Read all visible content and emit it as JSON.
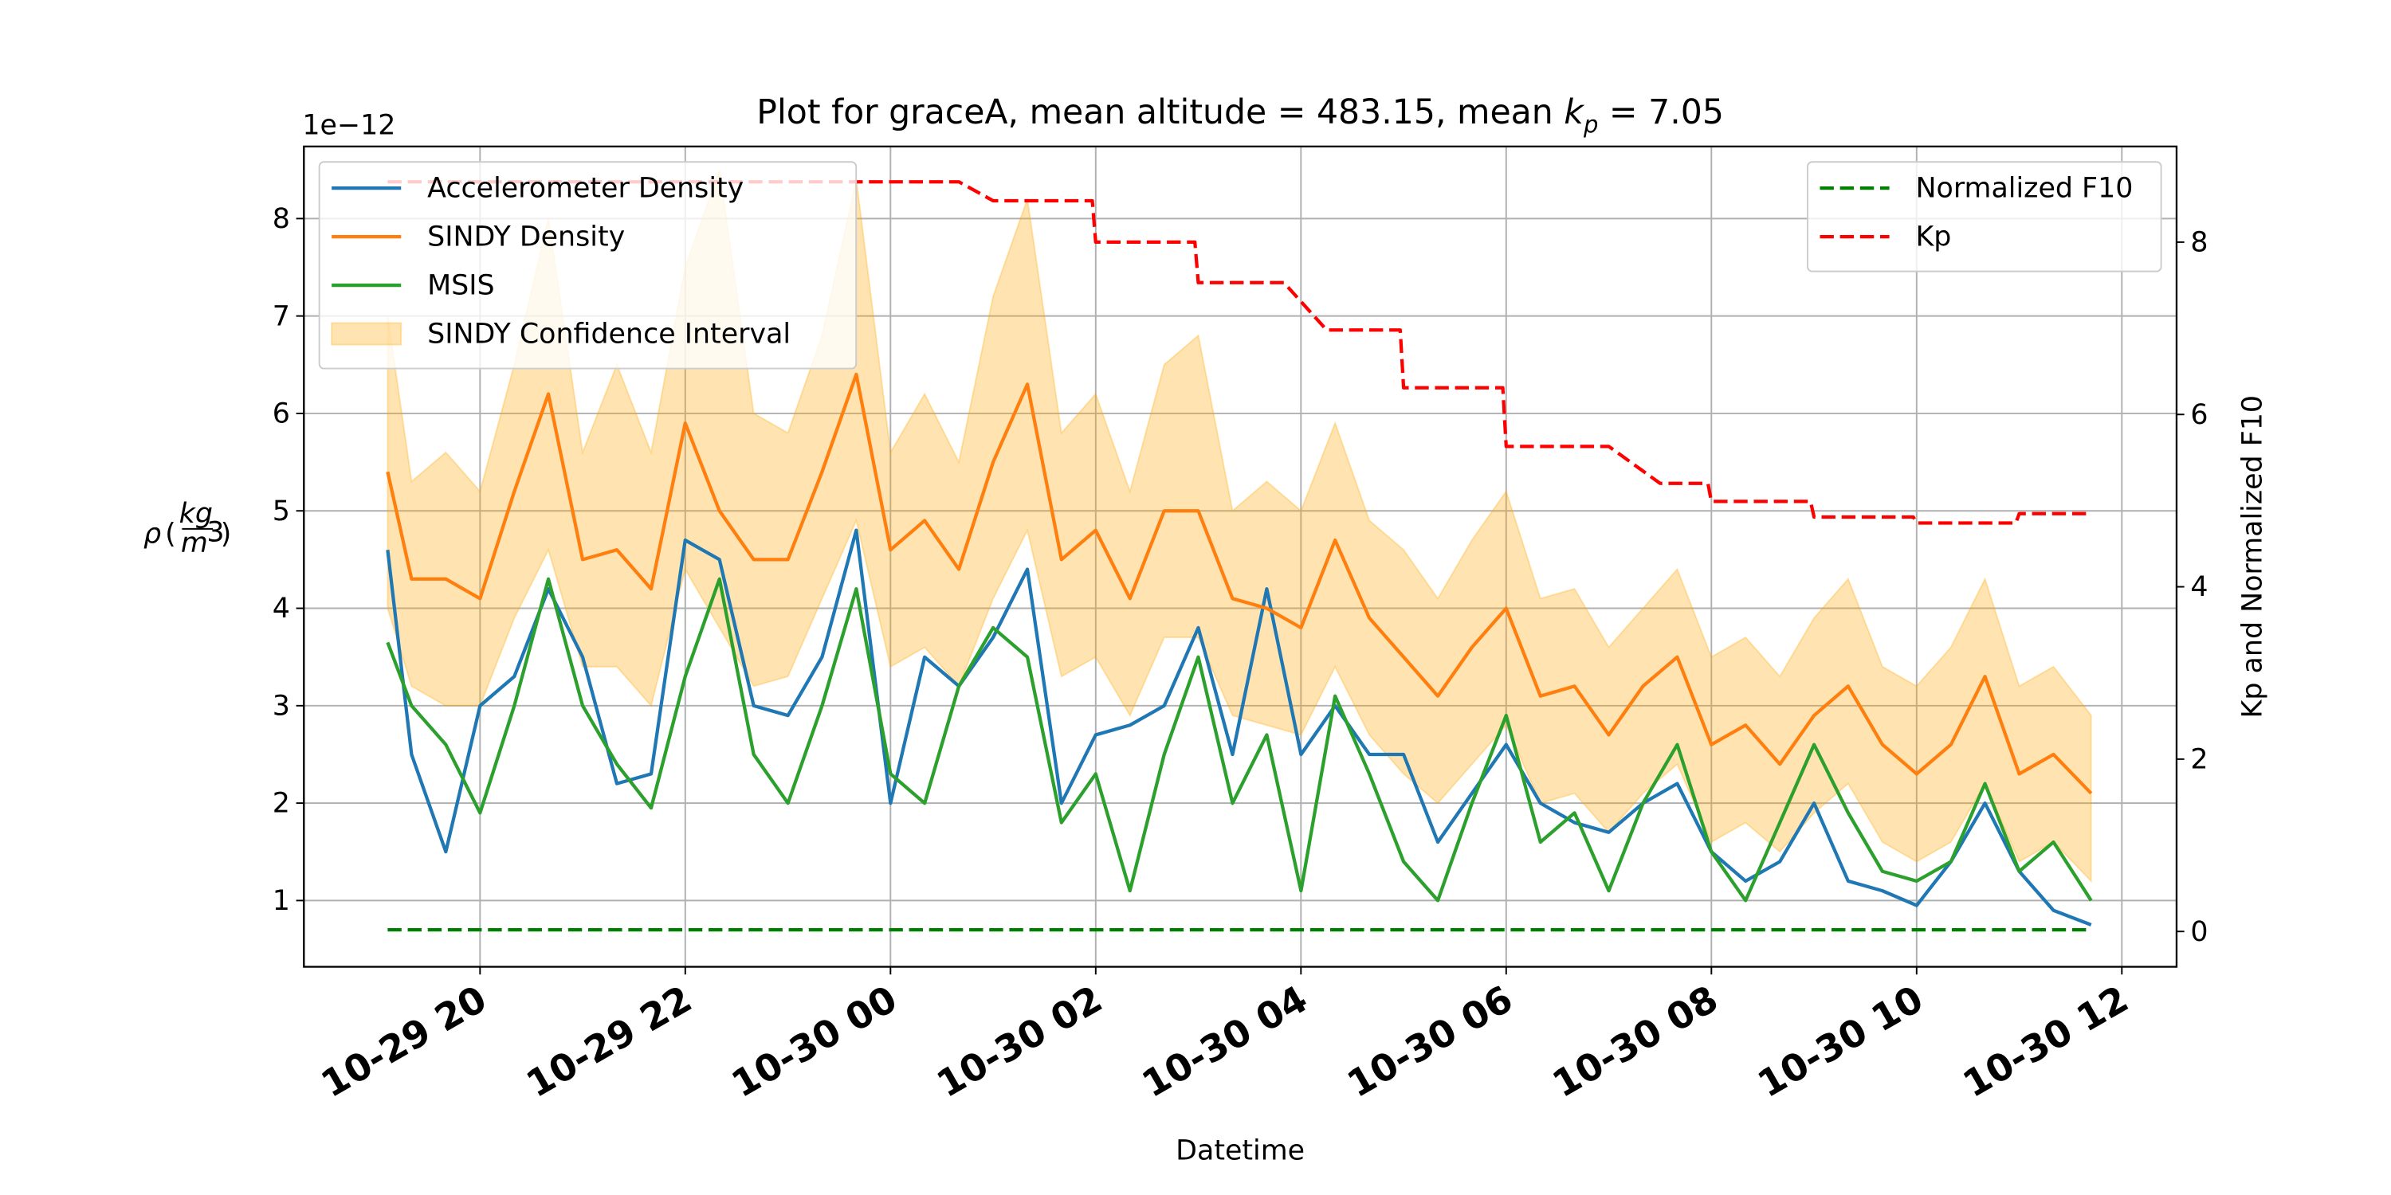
{
  "chart_data": {
    "type": "line",
    "title": [
      "Plot for graceA, mean altitude = 483.15, mean ",
      "k",
      "p",
      " = 7.05"
    ],
    "x_label": "Datetime",
    "y_label": [
      "ρ",
      "kg",
      "m",
      "3"
    ],
    "y_offset_label": "1e−12",
    "y2_label": "Kp and Normalized F10",
    "grid": true,
    "legend": "upper left",
    "legend2": "upper right",
    "x": [
      "10-29 19:06",
      "10-29 19:20",
      "10-29 19:40",
      "10-29 20:00",
      "10-29 20:20",
      "10-29 20:40",
      "10-29 21:00",
      "10-29 21:20",
      "10-29 21:40",
      "10-29 22:00",
      "10-29 22:20",
      "10-29 22:40",
      "10-29 23:00",
      "10-29 23:20",
      "10-29 23:40",
      "10-30 00:00",
      "10-30 00:20",
      "10-30 00:40",
      "10-30 01:00",
      "10-30 01:20",
      "10-30 01:40",
      "10-30 02:00",
      "10-30 02:20",
      "10-30 02:40",
      "10-30 03:00",
      "10-30 03:20",
      "10-30 03:40",
      "10-30 04:00",
      "10-30 04:20",
      "10-30 04:40",
      "10-30 05:00",
      "10-30 05:20",
      "10-30 05:40",
      "10-30 06:00",
      "10-30 06:20",
      "10-30 06:40",
      "10-30 07:00",
      "10-30 07:20",
      "10-30 07:40",
      "10-30 08:00",
      "10-30 08:20",
      "10-30 08:40",
      "10-30 09:00",
      "10-30 09:20",
      "10-30 09:40",
      "10-30 10:00",
      "10-30 10:20",
      "10-30 10:40",
      "10-30 11:00",
      "10-30 11:20",
      "10-30 11:42"
    ],
    "xlim": [
      "10-29 18:17",
      "10-30 12:32"
    ],
    "xticks": [
      {
        "value": "10-29 20:00",
        "label": "10-29 20"
      },
      {
        "value": "10-29 22:00",
        "label": "10-29 22"
      },
      {
        "value": "10-30 00:00",
        "label": "10-30 00"
      },
      {
        "value": "10-30 02:00",
        "label": "10-30 02"
      },
      {
        "value": "10-30 04:00",
        "label": "10-30 04"
      },
      {
        "value": "10-30 06:00",
        "label": "10-30 06"
      },
      {
        "value": "10-30 08:00",
        "label": "10-30 08"
      },
      {
        "value": "10-30 10:00",
        "label": "10-30 10"
      },
      {
        "value": "10-30 12:00",
        "label": "10-30 12"
      }
    ],
    "ylim": [
      0.32,
      8.74
    ],
    "yticks": [
      1,
      2,
      3,
      4,
      5,
      6,
      7,
      8
    ],
    "y2lim": [
      -0.41,
      9.11
    ],
    "y2ticks": [
      0,
      2,
      4,
      6,
      8
    ],
    "series": [
      {
        "name": "Accelerometer Density",
        "color": "#1f77b4",
        "values": [
          4.6,
          2.5,
          1.5,
          3.0,
          3.3,
          4.2,
          3.5,
          2.2,
          2.3,
          4.7,
          4.5,
          3.0,
          2.9,
          3.5,
          4.8,
          2.0,
          3.5,
          3.2,
          3.7,
          4.4,
          2.0,
          2.7,
          2.8,
          3.0,
          3.8,
          2.5,
          4.2,
          2.5,
          3.0,
          2.5,
          2.5,
          1.6,
          2.1,
          2.6,
          2.0,
          1.8,
          1.7,
          2.0,
          2.2,
          1.5,
          1.2,
          1.4,
          2.0,
          1.2,
          1.1,
          0.95,
          1.4,
          2.0,
          1.3,
          0.9,
          0.75
        ]
      },
      {
        "name": "SINDY Density",
        "color": "#ff7f0e",
        "values": [
          5.4,
          4.3,
          4.3,
          4.1,
          5.2,
          6.2,
          4.5,
          4.6,
          4.2,
          5.9,
          5.0,
          4.5,
          4.5,
          5.4,
          6.4,
          4.6,
          4.9,
          4.4,
          5.5,
          6.3,
          4.5,
          4.8,
          4.1,
          5.0,
          5.0,
          4.1,
          4.0,
          3.8,
          4.7,
          3.9,
          3.5,
          3.1,
          3.6,
          4.0,
          3.1,
          3.2,
          2.7,
          3.2,
          3.5,
          2.6,
          2.8,
          2.4,
          2.9,
          3.2,
          2.6,
          2.3,
          2.6,
          3.3,
          2.3,
          2.5,
          2.1
        ]
      },
      {
        "name": "MSIS",
        "color": "#2ca02c",
        "values": [
          3.65,
          3.0,
          2.6,
          1.9,
          3.0,
          4.3,
          3.0,
          2.4,
          1.95,
          3.3,
          4.3,
          2.5,
          2.0,
          3.0,
          4.2,
          2.3,
          2.0,
          3.2,
          3.8,
          3.5,
          1.8,
          2.3,
          1.1,
          2.5,
          3.5,
          2.0,
          2.7,
          1.1,
          3.1,
          2.3,
          1.4,
          1.0,
          2.0,
          2.9,
          1.6,
          1.9,
          1.1,
          2.0,
          2.6,
          1.5,
          1.0,
          1.8,
          2.6,
          1.9,
          1.3,
          1.2,
          1.4,
          2.2,
          1.3,
          1.6,
          1.0
        ]
      },
      {
        "name": "SINDY Confidence Interval",
        "color": "orange",
        "upper": [
          7.0,
          5.3,
          5.6,
          5.2,
          6.5,
          8.0,
          5.6,
          6.5,
          5.6,
          7.5,
          8.5,
          6.0,
          5.8,
          6.8,
          8.4,
          5.6,
          6.2,
          5.5,
          7.2,
          8.2,
          5.8,
          6.2,
          5.2,
          6.5,
          6.8,
          5.0,
          5.3,
          5.0,
          5.9,
          4.9,
          4.6,
          4.1,
          4.7,
          5.2,
          4.1,
          4.2,
          3.6,
          4.0,
          4.4,
          3.5,
          3.7,
          3.3,
          3.9,
          4.3,
          3.4,
          3.2,
          3.6,
          4.3,
          3.2,
          3.4,
          2.9
        ],
        "lower": [
          4.0,
          3.2,
          3.0,
          3.0,
          3.9,
          4.6,
          3.4,
          3.4,
          3.0,
          4.4,
          3.8,
          3.2,
          3.3,
          4.1,
          4.9,
          3.4,
          3.6,
          3.2,
          4.1,
          4.8,
          3.3,
          3.5,
          2.9,
          3.7,
          3.7,
          2.9,
          2.8,
          2.7,
          3.4,
          2.7,
          2.3,
          2.0,
          2.4,
          2.8,
          2.0,
          2.1,
          1.7,
          2.1,
          2.4,
          1.6,
          1.8,
          1.5,
          1.9,
          2.2,
          1.6,
          1.4,
          1.6,
          2.2,
          1.4,
          1.6,
          1.2
        ]
      },
      {
        "name": "Normalized F10",
        "color": "green",
        "linestyle": "dashed",
        "axis": "y2",
        "x": [
          "10-29 19:06",
          "10-30 11:42"
        ],
        "values": [
          0.02,
          0.02
        ]
      },
      {
        "name": "Kp",
        "color": "red",
        "linestyle": "dashed",
        "axis": "y2",
        "x": [
          "10-29 19:06",
          "10-30 00:40",
          "10-30 01:00",
          "10-30 01:58",
          "10-30 02:00",
          "10-30 02:58",
          "10-30 03:00",
          "10-30 03:50",
          "10-30 04:15",
          "10-30 04:58",
          "10-30 05:00",
          "10-30 05:58",
          "10-30 06:00",
          "10-30 07:00",
          "10-30 07:30",
          "10-30 07:58",
          "10-30 08:00",
          "10-30 08:58",
          "10-30 09:00",
          "10-30 09:58",
          "10-30 10:00",
          "10-30 10:58",
          "10-30 11:00",
          "10-30 11:42"
        ],
        "values": [
          8.7,
          8.7,
          8.48,
          8.48,
          8.0,
          8.0,
          7.53,
          7.53,
          6.98,
          6.98,
          6.31,
          6.31,
          5.63,
          5.63,
          5.2,
          5.2,
          4.99,
          4.99,
          4.81,
          4.81,
          4.74,
          4.74,
          4.85,
          4.85
        ]
      }
    ]
  }
}
